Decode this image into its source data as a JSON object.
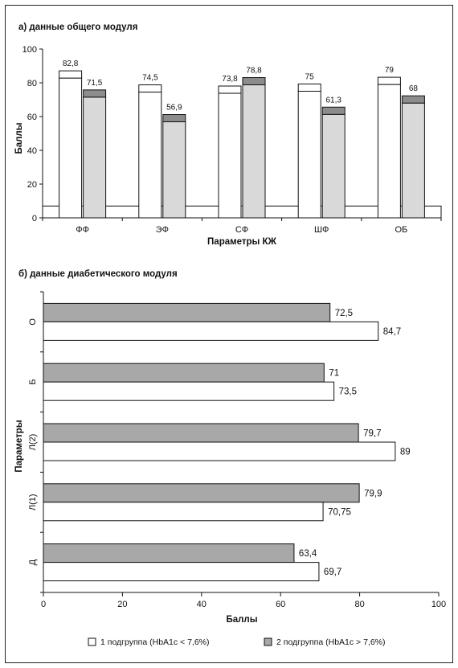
{
  "colors": {
    "group1": "#ffffff",
    "group2": "#a8a8a8",
    "group2_vertical": "#d9d9d9",
    "group1_cap": "#ffffff",
    "group2_cap": "#8c8c8c",
    "stroke": "#111111"
  },
  "chart_data": [
    {
      "type": "bar",
      "title": "а) данные общего модуля",
      "xlabel": "Параметры КЖ",
      "ylabel": "Баллы",
      "ylim": [
        0,
        100
      ],
      "yticks": [
        0,
        20,
        40,
        60,
        80,
        100
      ],
      "categories": [
        "ФФ",
        "ЭФ",
        "СФ",
        "ШФ",
        "ОБ"
      ],
      "series": [
        {
          "values": [
            82.8,
            74.5,
            73.8,
            75,
            79
          ],
          "labels": [
            "82,8",
            "74,5",
            "73,8",
            "75",
            "79"
          ]
        },
        {
          "values": [
            71.5,
            56.9,
            78.8,
            61.3,
            68
          ],
          "labels": [
            "71,5",
            "56,9",
            "78,8",
            "61,3",
            "68"
          ]
        }
      ],
      "grid": false
    },
    {
      "type": "bar",
      "orientation": "horizontal",
      "title": "б) данные диабетического модуля",
      "xlabel": "Баллы",
      "ylabel": "Параметры",
      "xlim": [
        0,
        100
      ],
      "xticks": [
        0,
        20,
        40,
        60,
        80,
        100
      ],
      "categories": [
        "О",
        "Б",
        "Л(2)",
        "Л(1)",
        "Д"
      ],
      "series": [
        {
          "name": "1 подгруппа (HbA1c < 7,6%)",
          "values": [
            84.7,
            73.5,
            89,
            70.75,
            69.7
          ],
          "labels": [
            "84,7",
            "73,5",
            "89",
            "70,75",
            "69,7"
          ]
        },
        {
          "name": "2 подгруппа (HbA1c > 7,6%)",
          "values": [
            72.5,
            71,
            79.7,
            79.9,
            63.4
          ],
          "labels": [
            "72,5",
            "71",
            "79,7",
            "79,9",
            "63,4"
          ]
        }
      ],
      "legend": "bottom",
      "grid": false
    }
  ]
}
